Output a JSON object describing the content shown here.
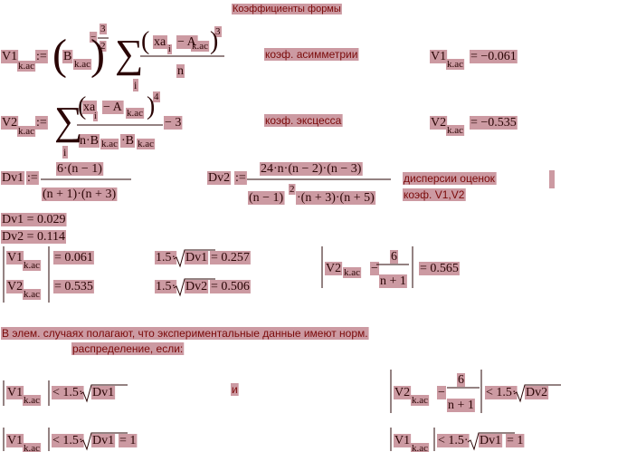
{
  "title": "Коэффициенты формы",
  "notes": [
    "коэф. асимметрии",
    "коэф. эксцесса",
    "дисперсии оценок",
    "коэф. V1,V2",
    "В элем. случаях полагают, что экспериментальные данные имеют норм.",
    "распределение, если:",
    "и"
  ],
  "math": {
    "v1_def": [
      "V1",
      "k.ac",
      ":=",
      "(",
      "B",
      "k.ac",
      ")",
      "−",
      "3",
      "2",
      "∑",
      "i",
      "(",
      "xa",
      "i",
      "− A",
      "k.ac",
      ")",
      "3",
      "n"
    ],
    "v1_val": [
      "V1",
      "k.ac",
      "= −0.061"
    ],
    "v2_def": [
      "V2",
      "k.ac",
      ":=",
      "∑",
      "i",
      "(",
      "xa",
      "i",
      "− A",
      "k.ac",
      ")",
      "4",
      "n·B",
      "k.ac",
      "·B",
      "k.ac",
      "− 3"
    ],
    "v2_val": [
      "V2",
      "k.ac",
      "= −0.535"
    ],
    "dv1_def": [
      "Dv1",
      ":=",
      "6·(n − 1)",
      "(n + 1)·(n + 3)"
    ],
    "dv2_def": [
      "Dv2",
      ":=",
      "24·n·(n − 2)·(n − 3)",
      "(n − 1)",
      "2",
      "·(n + 3)·(n + 5)"
    ],
    "dv1_val": [
      "Dv1 = 0.029"
    ],
    "dv2_val": [
      "Dv2 = 0.114"
    ],
    "abs_v1": [
      "V1",
      "k.ac",
      "= 0.061"
    ],
    "abs_v2": [
      "V2",
      "k.ac",
      "= 0.535"
    ],
    "s1": [
      "1.5·",
      "Dv1",
      "= 0.257"
    ],
    "s2": [
      "1.5·",
      "Dv2",
      "= 0.506"
    ],
    "big": [
      "V2",
      "k.ac",
      "−",
      "6",
      "n + 1",
      "= 0.565"
    ],
    "c1": [
      "V1",
      "k.ac",
      "< 1.5·",
      "Dv1"
    ],
    "c2": [
      "V2",
      "k.ac",
      "−",
      "6",
      "n + 1",
      "< 1.5·",
      "Dv2"
    ],
    "c3": [
      "V1",
      "k.ac",
      "< 1.5·",
      "Dv1",
      "= 1"
    ],
    "c4": [
      "V1",
      "k.ac",
      "< 1.5·",
      "Dv1",
      "= 1"
    ]
  }
}
